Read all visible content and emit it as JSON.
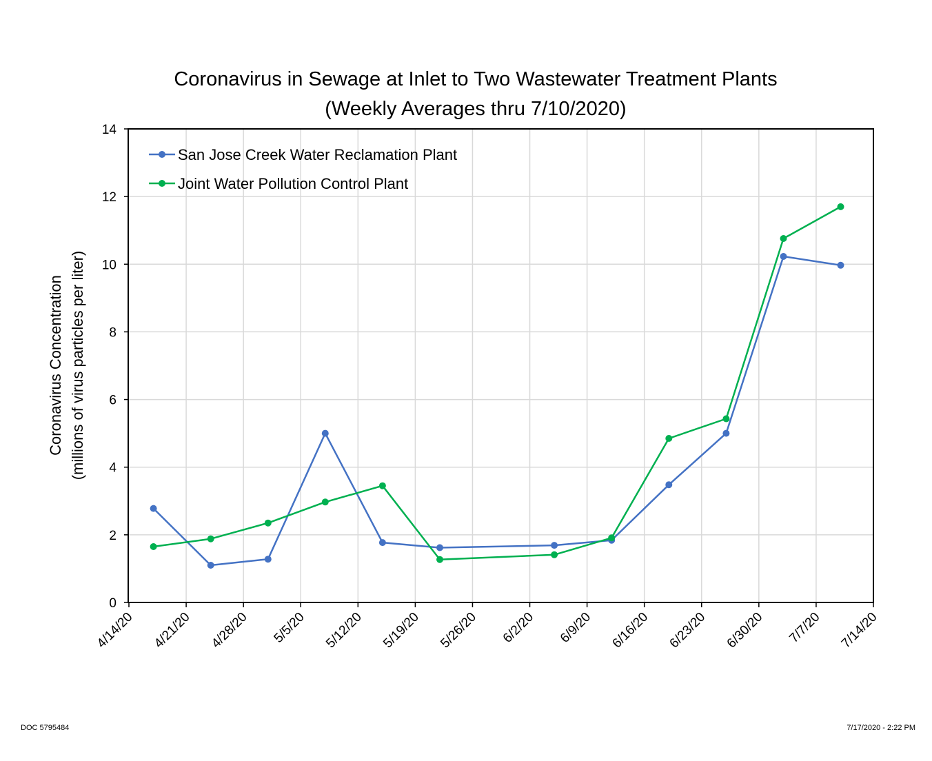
{
  "document": {
    "doc_id": "DOC 5795484",
    "timestamp": "7/17/2020 - 2:22 PM"
  },
  "chart_data": {
    "type": "line",
    "title": "Coronavirus in Sewage at Inlet to Two Wastewater Treatment Plants",
    "subtitle": "(Weekly Averages thru 7/10/2020)",
    "xlabel": "",
    "ylabel": "Coronavirus Concentration",
    "ylabel2": "(millions of virus particles per liter)",
    "x_ticks": [
      "4/14/20",
      "4/21/20",
      "4/28/20",
      "5/5/20",
      "5/12/20",
      "5/19/20",
      "5/26/20",
      "6/2/20",
      "6/9/20",
      "6/16/20",
      "6/23/20",
      "6/30/20",
      "7/7/20",
      "7/14/20"
    ],
    "y_ticks": [
      "0",
      "2",
      "4",
      "6",
      "8",
      "10",
      "12",
      "14"
    ],
    "ylim": [
      0,
      14
    ],
    "grid": true,
    "legend_position": "top-left",
    "series": [
      {
        "name": "San Jose Creek Water Reclamation Plant",
        "color": "#4472C4",
        "x": [
          "4/17/20",
          "4/24/20",
          "5/1/20",
          "5/8/20",
          "5/15/20",
          "5/22/20",
          "6/5/20",
          "6/12/20",
          "6/19/20",
          "6/26/20",
          "7/3/20",
          "7/10/20"
        ],
        "y": [
          2.78,
          1.1,
          1.28,
          5.0,
          1.77,
          1.62,
          1.69,
          1.84,
          3.48,
          5.0,
          10.23,
          9.97
        ]
      },
      {
        "name": "Joint Water Pollution Control Plant",
        "color": "#00B050",
        "x": [
          "4/17/20",
          "4/24/20",
          "5/1/20",
          "5/8/20",
          "5/15/20",
          "5/22/20",
          "6/5/20",
          "6/12/20",
          "6/19/20",
          "6/26/20",
          "7/3/20",
          "7/10/20"
        ],
        "y": [
          1.65,
          1.88,
          2.35,
          2.97,
          3.45,
          1.27,
          1.41,
          1.91,
          4.85,
          5.43,
          10.76,
          11.7
        ]
      }
    ]
  }
}
